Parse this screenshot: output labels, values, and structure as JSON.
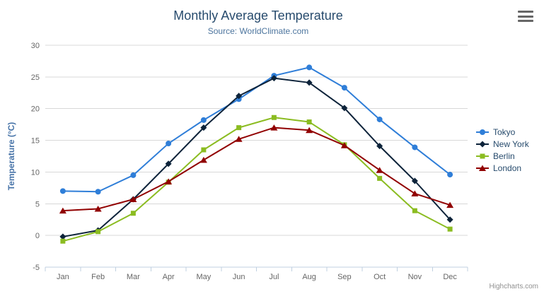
{
  "header": {
    "title": "Monthly Average Temperature",
    "subtitle": "Source: WorldClimate.com"
  },
  "toolbar": {
    "export_menu_icon": "hamburger-icon"
  },
  "chart_data": {
    "type": "line",
    "title": "Monthly Average Temperature",
    "subtitle": "Source: WorldClimate.com",
    "categories": [
      "Jan",
      "Feb",
      "Mar",
      "Apr",
      "May",
      "Jun",
      "Jul",
      "Aug",
      "Sep",
      "Oct",
      "Nov",
      "Dec"
    ],
    "series": [
      {
        "name": "Tokyo",
        "color": "#2f7ed8",
        "marker": "circle",
        "values": [
          7.0,
          6.9,
          9.5,
          14.5,
          18.2,
          21.5,
          25.2,
          26.5,
          23.3,
          18.3,
          13.9,
          9.6
        ]
      },
      {
        "name": "New York",
        "color": "#0d233a",
        "marker": "diamond",
        "values": [
          -0.2,
          0.8,
          5.7,
          11.3,
          17.0,
          22.0,
          24.8,
          24.1,
          20.1,
          14.1,
          8.6,
          2.5
        ]
      },
      {
        "name": "Berlin",
        "color": "#8bbc21",
        "marker": "square",
        "values": [
          -0.9,
          0.6,
          3.5,
          8.4,
          13.5,
          17.0,
          18.6,
          17.9,
          14.3,
          9.0,
          3.9,
          1.0
        ]
      },
      {
        "name": "London",
        "color": "#910000",
        "marker": "triangle",
        "values": [
          3.9,
          4.2,
          5.7,
          8.5,
          11.9,
          15.2,
          17.0,
          16.6,
          14.2,
          10.3,
          6.6,
          4.8
        ]
      }
    ],
    "xlabel": "",
    "ylabel": "Temperature (°C)",
    "ylim": [
      -5,
      30
    ],
    "yticks": [
      -5,
      0,
      5,
      10,
      15,
      20,
      25,
      30
    ],
    "grid": true,
    "legend_position": "right",
    "grid_color": "#d8d8d8",
    "axis_line_color": "#c0d0e0"
  },
  "credits": {
    "label": "Highcharts.com"
  }
}
